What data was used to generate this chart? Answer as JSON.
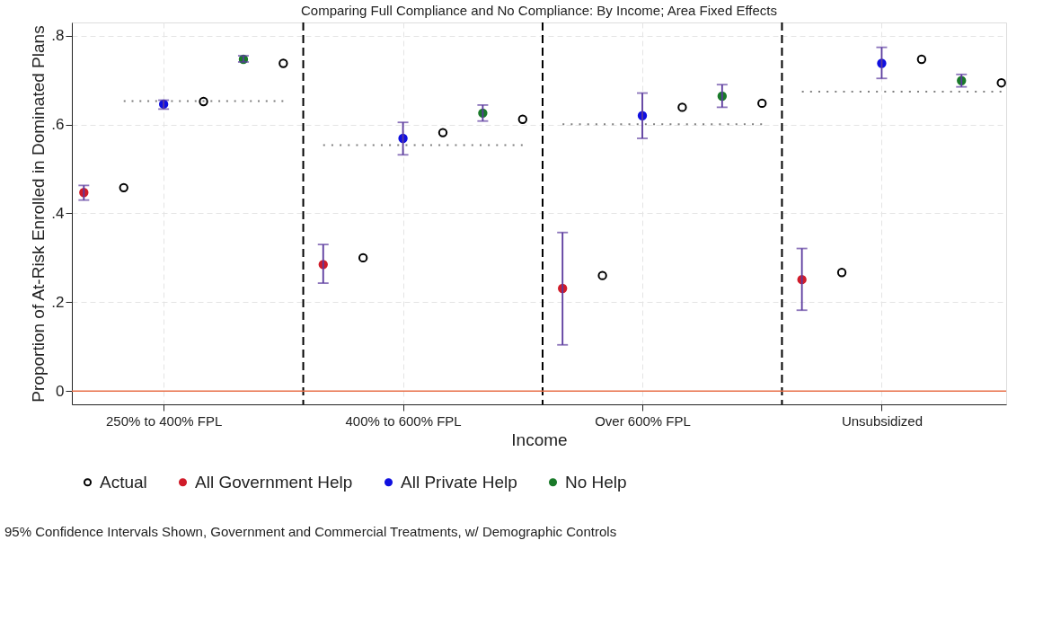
{
  "chart_data": {
    "type": "scatter",
    "title": "Comparing Full Compliance and No Compliance: By Income; Area Fixed Effects",
    "xlabel": "Income",
    "ylabel": "Proportion of At-Risk Enrolled in Dominated Plans",
    "categories": [
      null,
      null,
      "250% to 400% FPL",
      null,
      null,
      null,
      null,
      null,
      "400% to 600% FPL",
      null,
      null,
      null,
      null,
      null,
      "Over 600% FPL",
      null,
      null,
      null,
      null,
      null,
      "Unsubsidized",
      null,
      null,
      null
    ],
    "ylim": [
      -0.03,
      0.83
    ],
    "yticks": [
      {
        "value": 0,
        "label": "0"
      },
      {
        "value": 0.2,
        "label": ".2"
      },
      {
        "value": 0.4,
        "label": ".4"
      },
      {
        "value": 0.6,
        "label": ".6"
      },
      {
        "value": 0.8,
        "label": ".8"
      }
    ],
    "grid": true,
    "legend": "bottom",
    "marker": "circle",
    "series": [
      {
        "name": "Actual",
        "color": "#000000",
        "values": [
          null,
          0.458,
          null,
          0.652,
          null,
          0.738,
          null,
          0.3,
          null,
          0.582,
          null,
          0.612,
          null,
          0.26,
          null,
          0.639,
          null,
          0.648,
          null,
          0.267,
          null,
          0.747,
          null,
          0.694
        ]
      },
      {
        "name": "All Government Help",
        "color": "#d01c2a",
        "values": [
          0.447,
          null,
          null,
          null,
          null,
          null,
          0.285,
          null,
          null,
          null,
          null,
          null,
          0.231,
          null,
          null,
          null,
          null,
          null,
          0.251,
          null,
          null,
          null,
          null,
          null
        ],
        "errors": [
          [
            0.43,
            0.463
          ],
          null,
          null,
          null,
          null,
          null,
          [
            0.243,
            0.33
          ],
          null,
          null,
          null,
          null,
          null,
          [
            0.104,
            0.357
          ],
          null,
          null,
          null,
          null,
          null,
          [
            0.182,
            0.321
          ],
          null,
          null,
          null,
          null,
          null
        ]
      },
      {
        "name": "All Private Help",
        "color": "#1010e0",
        "values": [
          null,
          null,
          0.646,
          null,
          null,
          null,
          null,
          null,
          0.569,
          null,
          null,
          null,
          null,
          null,
          0.62,
          null,
          null,
          null,
          null,
          null,
          0.738,
          null,
          null,
          null
        ],
        "errors": [
          null,
          null,
          [
            0.635,
            0.655
          ],
          null,
          null,
          null,
          null,
          null,
          [
            0.532,
            0.605
          ],
          null,
          null,
          null,
          null,
          null,
          [
            0.569,
            0.671
          ],
          null,
          null,
          null,
          null,
          null,
          [
            0.704,
            0.774
          ],
          null,
          null,
          null
        ]
      },
      {
        "name": "No Help",
        "color": "#1a7a2a",
        "values": [
          null,
          null,
          null,
          null,
          0.747,
          null,
          null,
          null,
          null,
          null,
          0.626,
          null,
          null,
          null,
          null,
          null,
          0.664,
          null,
          null,
          null,
          null,
          null,
          0.699,
          null
        ],
        "errors": [
          null,
          null,
          null,
          null,
          [
            0.741,
            0.755
          ],
          null,
          null,
          null,
          null,
          null,
          [
            0.608,
            0.644
          ],
          null,
          null,
          null,
          null,
          null,
          [
            0.639,
            0.69
          ],
          null,
          null,
          null,
          null,
          null,
          [
            0.685,
            0.713
          ],
          null
        ]
      },
      {
        "type": "line",
        "color": "#808080",
        "line_style": "dotted",
        "marker": "none",
        "values": [
          null,
          0.653,
          0.653,
          0.653,
          0.653,
          0.653,
          null,
          null,
          null,
          null,
          null,
          null,
          null,
          null,
          null,
          null,
          null,
          null,
          null,
          null,
          null,
          null,
          null,
          null
        ]
      },
      {
        "type": "line",
        "color": "#808080",
        "line_style": "dotted",
        "marker": "none",
        "values": [
          null,
          null,
          null,
          null,
          null,
          null,
          0.554,
          0.554,
          0.554,
          0.554,
          0.554,
          0.554,
          null,
          null,
          null,
          null,
          null,
          null,
          null,
          null,
          null,
          null,
          null,
          null
        ]
      },
      {
        "type": "line",
        "color": "#808080",
        "line_style": "dotted",
        "marker": "none",
        "values": [
          null,
          null,
          null,
          null,
          null,
          null,
          null,
          null,
          null,
          null,
          null,
          null,
          0.601,
          0.601,
          0.601,
          0.601,
          0.601,
          0.601,
          null,
          null,
          null,
          null,
          null,
          null
        ]
      },
      {
        "type": "line",
        "color": "#808080",
        "line_style": "dotted",
        "marker": "none",
        "values": [
          null,
          null,
          null,
          null,
          null,
          null,
          null,
          null,
          null,
          null,
          null,
          null,
          null,
          null,
          null,
          null,
          null,
          null,
          0.674,
          0.674,
          0.674,
          0.674,
          0.674,
          0.674
        ]
      }
    ],
    "ref_lines": [
      {
        "axis": "y",
        "value": 0,
        "color": "#e8704a",
        "line_style": "solid"
      }
    ],
    "annotations": [
      "95% Confidence Intervals Shown, Government and Commercial Treatments, w/ Demographic Controls"
    ]
  }
}
